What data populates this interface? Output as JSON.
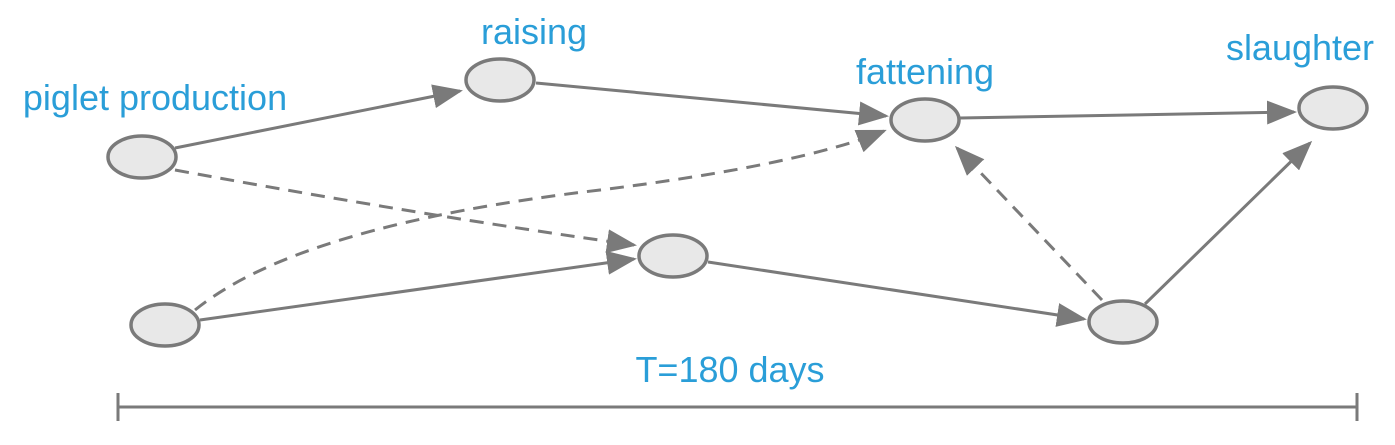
{
  "nodes": [
    {
      "label": "piglet production"
    },
    {
      "label": "raising"
    },
    {
      "label": "fattening"
    },
    {
      "label": "slaughter"
    }
  ],
  "timeline": {
    "label": "T=180 days"
  }
}
